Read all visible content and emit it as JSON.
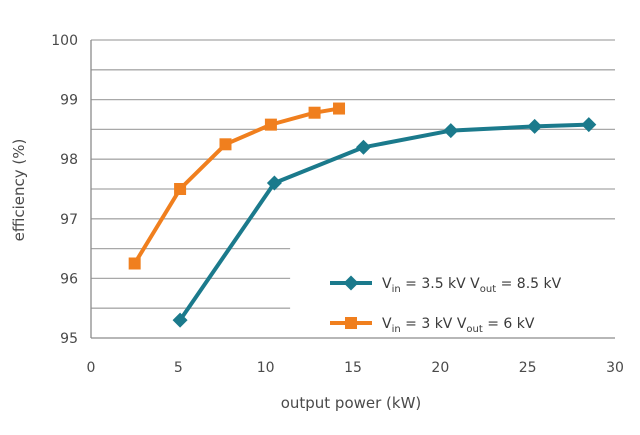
{
  "chart_data": {
    "type": "line",
    "xlabel": "output power (kW)",
    "ylabel": "efficiency (%)",
    "xlim": [
      0,
      30
    ],
    "ylim": [
      95,
      100
    ],
    "x_ticks": [
      "0",
      "5",
      "10",
      "15",
      "20",
      "25",
      "30"
    ],
    "y_ticks": [
      "95",
      "96",
      "97",
      "98",
      "99",
      "100"
    ],
    "grid": "horizontal",
    "legend_position": "lower-right",
    "series": [
      {
        "name": "Vin = 3.5 kV Vout = 8.5 kV",
        "legend": {
          "v1": "V",
          "sub1": "in",
          "mid": " = 3.5 kV  V",
          "sub2": "out",
          "tail": " = 8.5 kV"
        },
        "color": "#1b7a8c",
        "marker": "diamond",
        "x": [
          5.1,
          10.5,
          15.6,
          20.6,
          25.4,
          28.5
        ],
        "y": [
          95.3,
          97.6,
          98.2,
          98.48,
          98.55,
          98.58
        ]
      },
      {
        "name": "Vin = 3 kV Vout = 6 kV",
        "legend": {
          "v1": "V",
          "sub1": "in",
          "mid": " = 3 kV  V",
          "sub2": "out",
          "tail": " = 6 kV"
        },
        "color": "#f07f1e",
        "marker": "square",
        "x": [
          2.5,
          5.1,
          7.7,
          10.3,
          12.8,
          14.2
        ],
        "y": [
          96.25,
          97.5,
          98.25,
          98.58,
          98.78,
          98.85
        ]
      }
    ]
  }
}
